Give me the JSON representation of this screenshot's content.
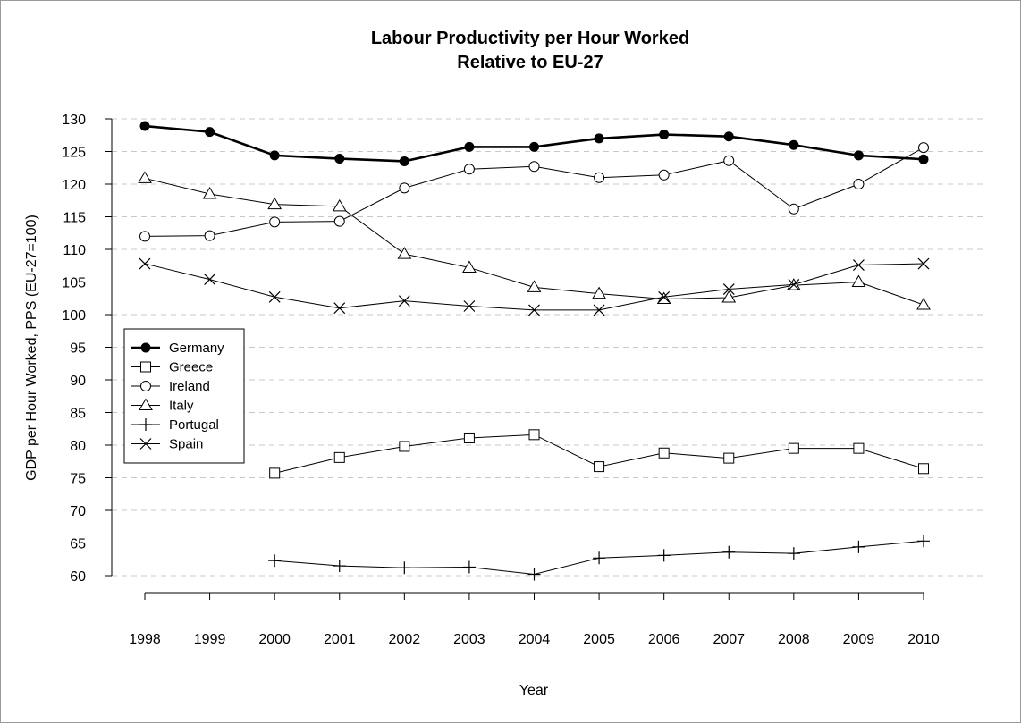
{
  "chart_data": {
    "type": "line",
    "title": "Labour Productivity per Hour Worked",
    "subtitle": "Relative to EU-27",
    "xlabel": "Year",
    "ylabel": "GDP per Hour Worked, PPS (EU-27=100)",
    "x": [
      1998,
      1999,
      2000,
      2001,
      2002,
      2003,
      2004,
      2005,
      2006,
      2007,
      2008,
      2009,
      2010
    ],
    "ylim": [
      60,
      130
    ],
    "yticks": [
      60,
      65,
      70,
      75,
      80,
      85,
      90,
      95,
      100,
      105,
      110,
      115,
      120,
      125,
      130
    ],
    "grid": "horizontal dashed",
    "legend_position": "middle-left",
    "series": [
      {
        "name": "Germany",
        "marker": "filled-circle",
        "line_width": "bold",
        "color": "#000000",
        "values": [
          128.9,
          128.0,
          124.4,
          123.9,
          123.5,
          125.7,
          125.7,
          127.0,
          127.6,
          127.3,
          126.0,
          124.4,
          123.8
        ]
      },
      {
        "name": "Greece",
        "marker": "square",
        "line_width": "normal",
        "color": "#000000",
        "values": [
          null,
          null,
          75.7,
          78.1,
          79.8,
          81.1,
          81.6,
          76.7,
          78.8,
          78.0,
          79.5,
          79.5,
          76.4
        ]
      },
      {
        "name": "Ireland",
        "marker": "circle",
        "line_width": "normal",
        "color": "#000000",
        "values": [
          112.0,
          112.1,
          114.2,
          114.3,
          119.4,
          122.3,
          122.7,
          121.0,
          121.4,
          123.6,
          116.2,
          120.0,
          125.6
        ]
      },
      {
        "name": "Italy",
        "marker": "triangle",
        "line_width": "normal",
        "color": "#000000",
        "values": [
          120.9,
          118.5,
          116.9,
          116.6,
          109.3,
          107.2,
          104.2,
          103.2,
          102.4,
          102.6,
          104.5,
          105.0,
          101.5
        ]
      },
      {
        "name": "Portugal",
        "marker": "plus",
        "line_width": "normal",
        "color": "#000000",
        "values": [
          null,
          null,
          62.3,
          61.5,
          61.2,
          61.3,
          60.2,
          62.7,
          63.1,
          63.6,
          63.4,
          64.4,
          65.3
        ]
      },
      {
        "name": "Spain",
        "marker": "cross",
        "line_width": "normal",
        "color": "#000000",
        "values": [
          107.8,
          105.4,
          102.7,
          101.0,
          102.1,
          101.3,
          100.7,
          100.7,
          102.7,
          103.9,
          104.6,
          107.6,
          107.8
        ]
      }
    ]
  }
}
